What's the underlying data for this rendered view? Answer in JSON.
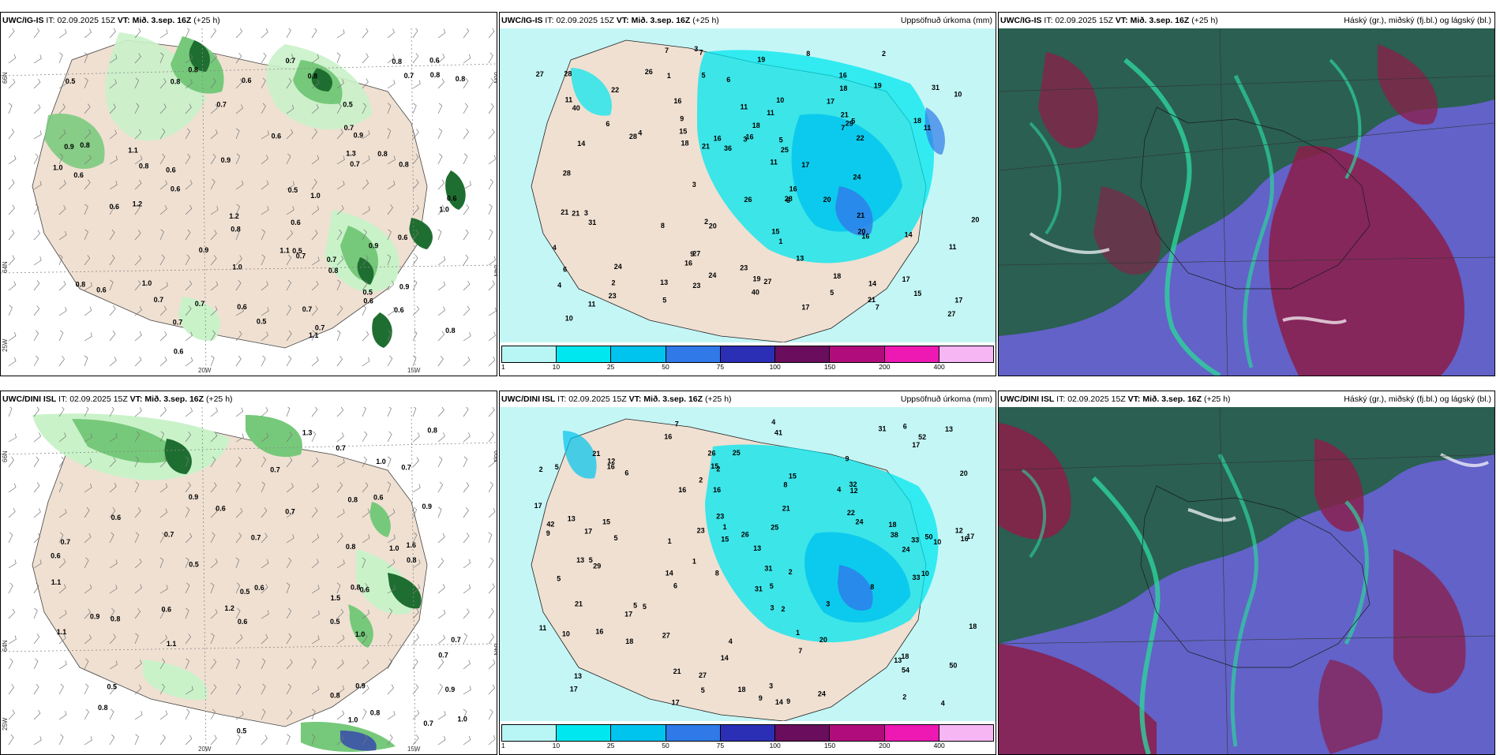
{
  "panels": [
    {
      "model": "UWC/IG-IS",
      "it_label": "IT:",
      "it": "02.09.2025 15Z",
      "vt_label": "VT:",
      "vt": "Mið. 3.sep. 16Z",
      "lead": "(+25 h)",
      "right": ""
    },
    {
      "model": "UWC/IG-IS",
      "it_label": "IT:",
      "it": "02.09.2025 15Z",
      "vt_label": "VT:",
      "vt": "Mið. 3.sep. 16Z",
      "lead": "(+25 h)",
      "right": "Uppsöfnuð úrkoma (mm)"
    },
    {
      "model": "UWC/IG-IS",
      "it_label": "IT:",
      "it": "02.09.2025 15Z",
      "vt_label": "VT:",
      "vt": "Mið. 3.sep. 16Z",
      "lead": "(+25 h)",
      "right": "Háský (gr.), miðský (fj.bl.) og lágský (bl.)"
    },
    {
      "model": "UWC/DINI ISL",
      "it_label": "IT:",
      "it": "02.09.2025 15Z",
      "vt_label": "VT:",
      "vt": "Mið. 3.sep. 16Z",
      "lead": "(+25 h)",
      "right": ""
    },
    {
      "model": "UWC/DINI ISL",
      "it_label": "IT:",
      "it": "02.09.2025 15Z",
      "vt_label": "VT:",
      "vt": "Mið. 3.sep. 16Z",
      "lead": "(+25 h)",
      "right": "Uppsöfnuð úrkoma (mm)"
    },
    {
      "model": "UWC/DINI ISL",
      "it_label": "IT:",
      "it": "02.09.2025 15Z",
      "vt_label": "VT:",
      "vt": "Mið. 3.sep. 16Z",
      "lead": "(+25 h)",
      "right": "Háský (gr.), miðský (fj.bl.) og lágský (bl.)"
    }
  ],
  "axes": {
    "lon_20": "20W",
    "lon_15": "15W",
    "lat_66": "66N",
    "lat_64": "64N",
    "lon_25": "25W"
  },
  "colorbar": {
    "ticks": [
      "1",
      "10",
      "25",
      "50",
      "75",
      "100",
      "150",
      "200",
      "400"
    ],
    "colors": [
      "#b8f6f6",
      "#00e7ef",
      "#00c3ee",
      "#2f79e8",
      "#2b2fb6",
      "#6a0d5c",
      "#b00c7b",
      "#ee18b3",
      "#f6b6f3"
    ]
  },
  "colors": {
    "land": "#efe0d2",
    "sea_precip": "#c4f6f6",
    "rain_light": "#c9f2c9",
    "rain_mid": "#76c97a",
    "rain_heavy": "#1f6e31",
    "cloud_high": "#2a5f52",
    "cloud_mid": "#6262c8",
    "cloud_low": "#8c1d48",
    "cloud_green": "#2ed39b"
  },
  "values": {
    "p1": [
      "0.7",
      "0.8",
      "1.0",
      "1.1",
      "0.8",
      "0.7",
      "1.0",
      "0.6",
      "0.8",
      "0.7",
      "0.6",
      "0.9",
      "1.2",
      "0.5",
      "0.7",
      "0.8",
      "0.6",
      "0.7",
      "0.9",
      "0.8",
      "0.5",
      "0.7",
      "0.7",
      "0.6",
      "1.0",
      "0.9",
      "1.2",
      "0.8",
      "0.5",
      "0.7",
      "0.8",
      "0.6",
      "0.5",
      "0.7",
      "0.8",
      "0.6",
      "0.7",
      "0.8",
      "0.6",
      "0.7",
      "0.6",
      "0.5",
      "0.8",
      "0.9",
      "0.8",
      "0.6",
      "1.1",
      "1.0",
      "0.6",
      "0.8",
      "0.9",
      "0.6",
      "0.6",
      "0.7",
      "0.5",
      "0.8",
      "0.6",
      "0.9",
      "0.6",
      "0.8",
      "1.0",
      "1.1",
      "1.3",
      "0.6"
    ],
    "p2": [
      "11",
      "14",
      "16",
      "15",
      "6",
      "8",
      "17",
      "16",
      "14",
      "16",
      "27",
      "18",
      "24",
      "19",
      "18",
      "15",
      "20",
      "31",
      "26",
      "10",
      "27",
      "23",
      "40",
      "20",
      "16",
      "18",
      "16",
      "11",
      "11",
      "13",
      "15",
      "20",
      "10",
      "10",
      "28",
      "17",
      "19",
      "22",
      "14",
      "23",
      "28",
      "27",
      "16",
      "23",
      "24",
      "21",
      "18",
      "27",
      "20",
      "17",
      "40",
      "16",
      "28",
      "21",
      "24",
      "22",
      "18",
      "36",
      "17",
      "21",
      "25",
      "21",
      "29",
      "31",
      "7",
      "3",
      "2",
      "2",
      "5",
      "5",
      "4",
      "6",
      "11",
      "8",
      "13",
      "21",
      "17",
      "19",
      "11",
      "7",
      "9",
      "21",
      "5",
      "7",
      "26",
      "28",
      "6",
      "7",
      "11",
      "4",
      "1",
      "6",
      "5",
      "3",
      "2",
      "3",
      "4",
      "3",
      "5",
      "11",
      "9",
      "1"
    ],
    "p4": [
      "0.5",
      "0.7",
      "1.0",
      "0.7",
      "0.8",
      "0.6",
      "1.6",
      "0.7",
      "0.9",
      "0.8",
      "0.8",
      "1.5",
      "1.1",
      "1.0",
      "1.1",
      "0.7",
      "0.7",
      "0.9",
      "1.0",
      "0.6",
      "0.6",
      "1.1",
      "0.8",
      "0.7",
      "0.8",
      "0.5",
      "0.6",
      "0.8",
      "1.0",
      "0.8",
      "0.9",
      "1.3",
      "0.7",
      "0.9",
      "0.5",
      "0.8",
      "0.7",
      "0.6",
      "0.6",
      "1.0",
      "1.2",
      "0.6",
      "0.7",
      "0.5",
      "0.6",
      "0.9",
      "0.8",
      "0.7",
      "0.5"
    ],
    "p5": [
      "7",
      "9",
      "16",
      "8",
      "5",
      "5",
      "5",
      "4",
      "5",
      "8",
      "13",
      "17",
      "16",
      "14",
      "14",
      "9",
      "14",
      "31",
      "24",
      "17",
      "17",
      "13",
      "17",
      "50",
      "11",
      "13",
      "15",
      "38",
      "18",
      "10",
      "13",
      "15",
      "16",
      "23",
      "20",
      "18",
      "18",
      "27",
      "13",
      "25",
      "13",
      "17",
      "24",
      "21",
      "18",
      "12",
      "54",
      "32",
      "17",
      "31",
      "15",
      "24",
      "25",
      "17",
      "41",
      "18",
      "23",
      "26",
      "52",
      "16",
      "50",
      "33",
      "12",
      "27",
      "31",
      "42",
      "33",
      "29",
      "16",
      "20",
      "21",
      "26",
      "12",
      "22",
      "21",
      "15",
      "21",
      "16",
      "10",
      "5",
      "4",
      "3",
      "2",
      "2",
      "2",
      "2",
      "4",
      "8",
      "6",
      "7",
      "9",
      "10",
      "5",
      "9",
      "1",
      "1",
      "3",
      "1",
      "2",
      "4",
      "6",
      "3",
      "2",
      "1",
      "5",
      "5",
      "6"
    ]
  }
}
